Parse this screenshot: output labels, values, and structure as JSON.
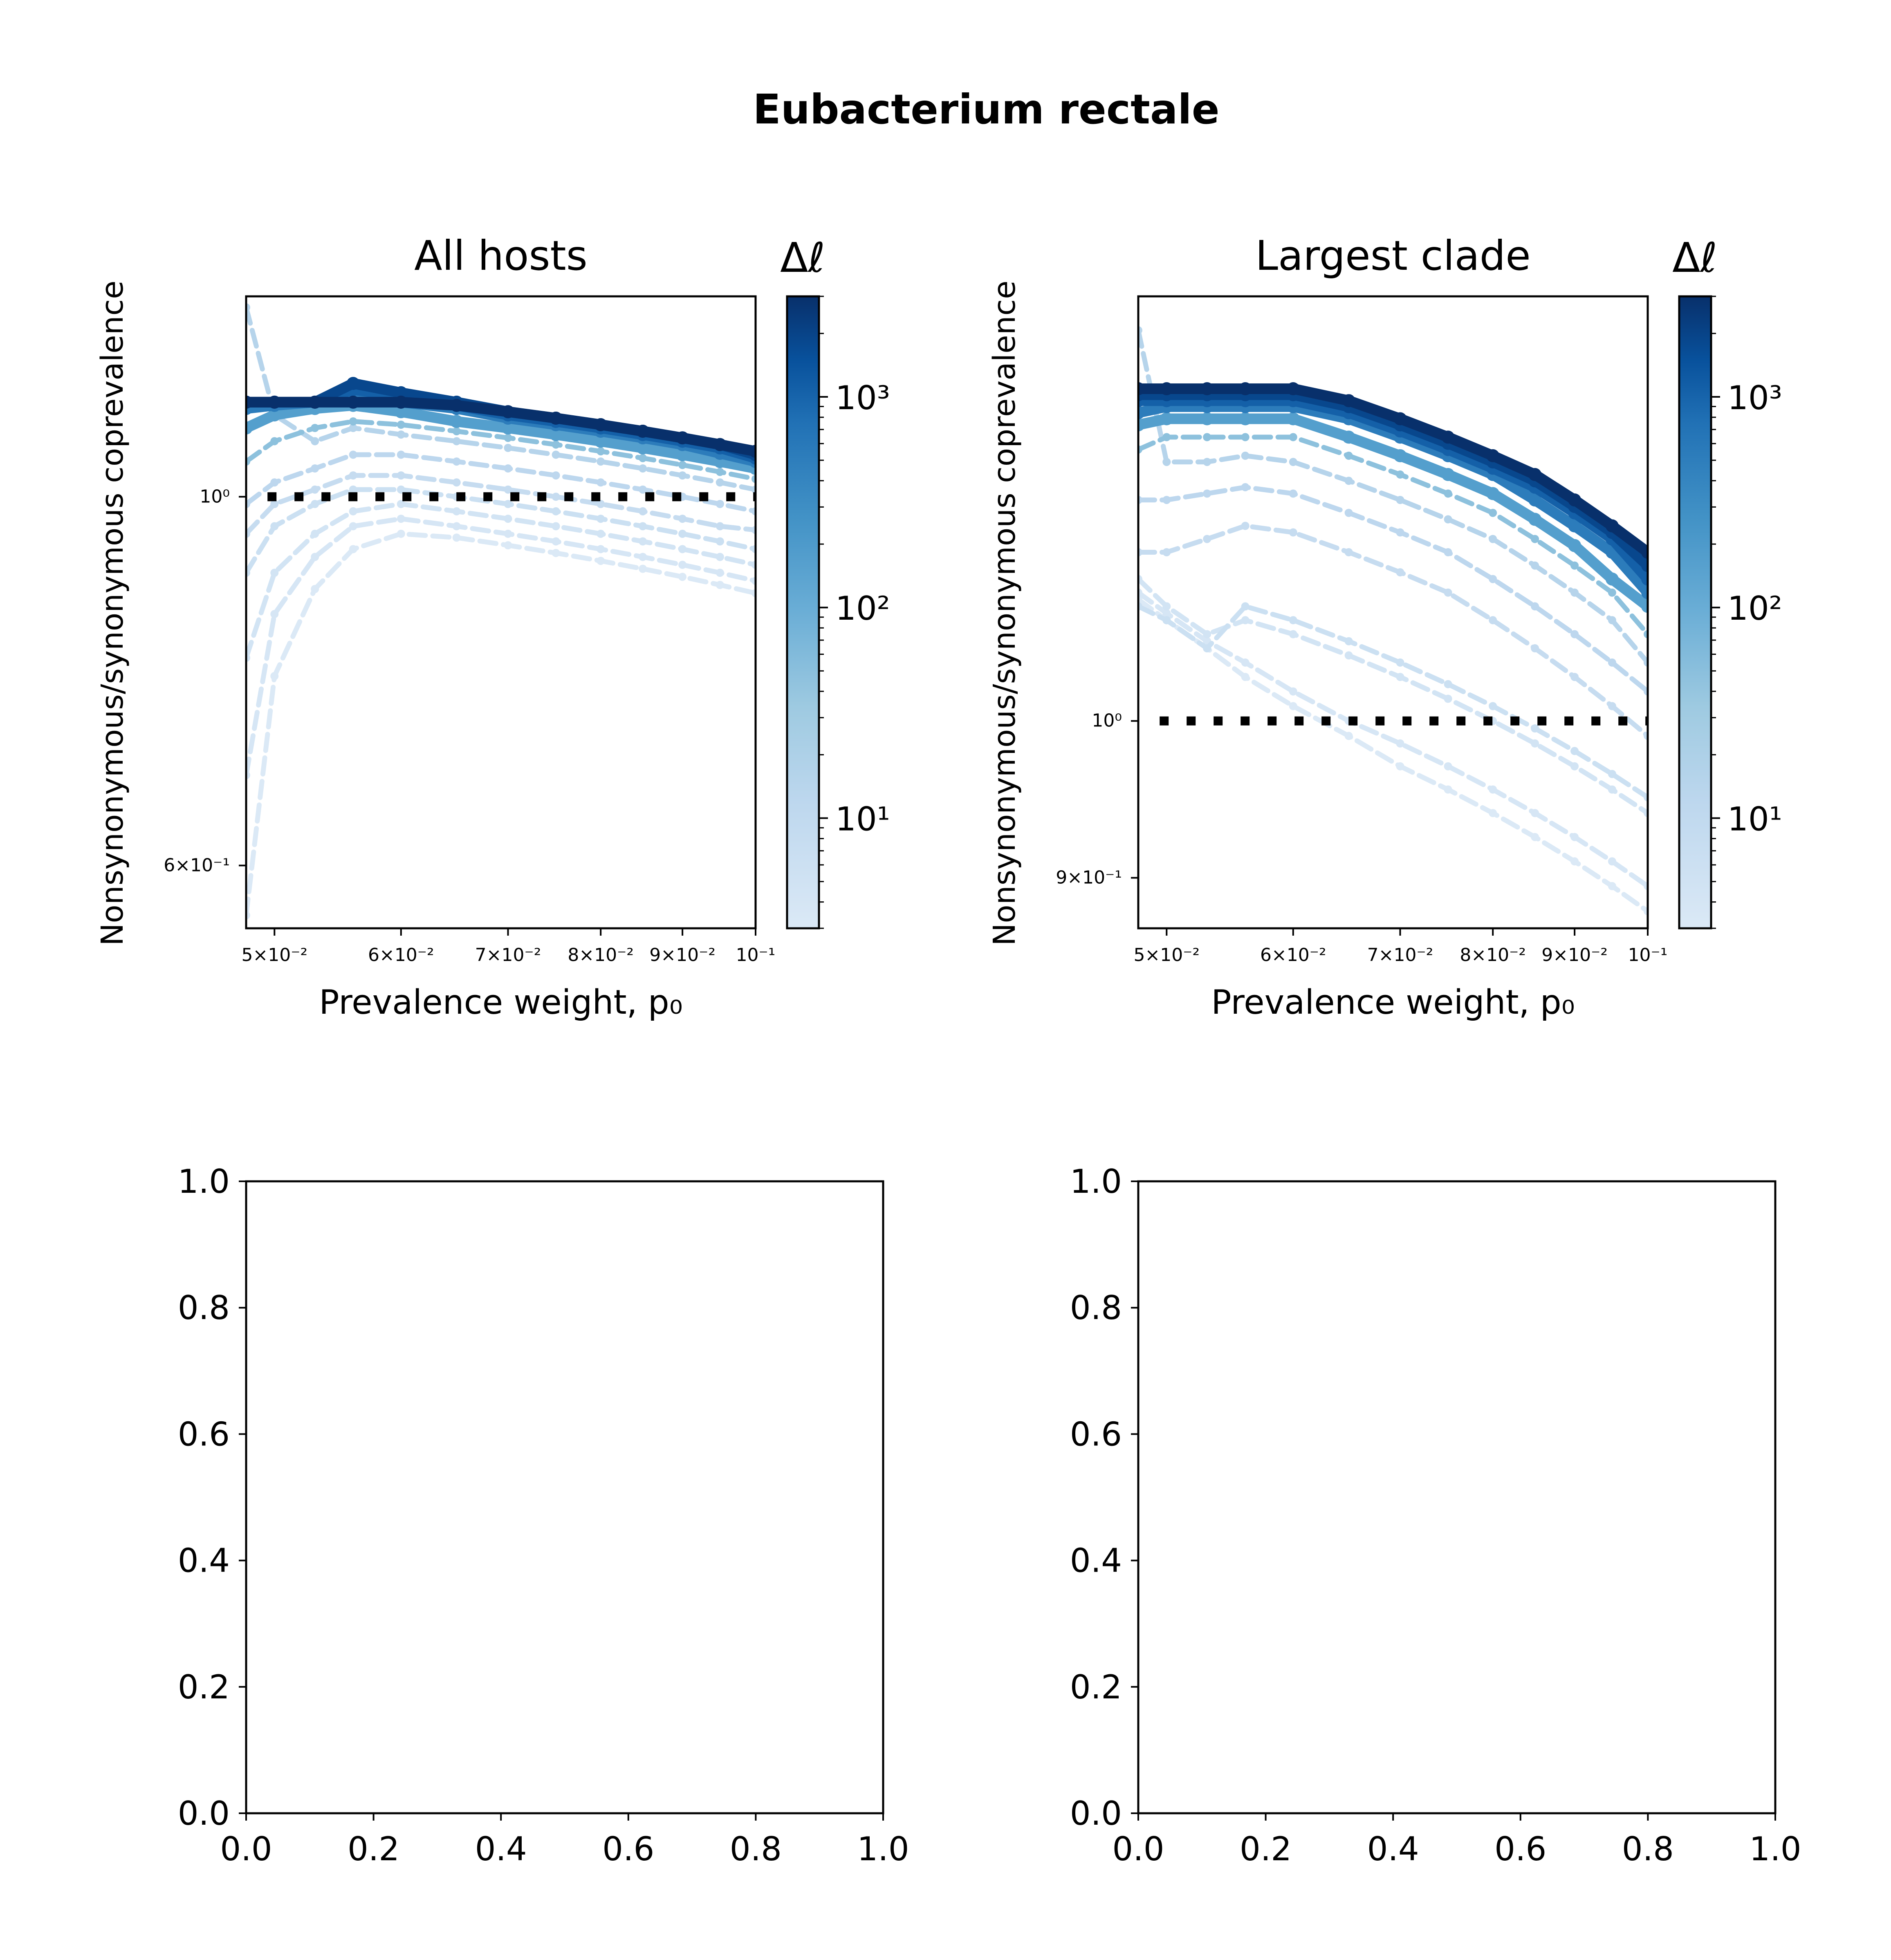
{
  "figure": {
    "title": "Eubacterium rectale"
  },
  "colorbar": {
    "label": "Δℓ",
    "scale": "log",
    "range": [
      3,
      3000
    ],
    "ticks": [
      "10¹",
      "10²",
      "10³"
    ],
    "tick_values": [
      10,
      100,
      1000
    ],
    "colormap": [
      "#dbe9f6",
      "#bdd7ee",
      "#9ecae1",
      "#6baed6",
      "#4292c6",
      "#2171b5",
      "#08519c",
      "#08306b"
    ]
  },
  "reference_line_color": "#000000",
  "chart_data": [
    {
      "id": "all-hosts",
      "type": "line",
      "title": "All hosts",
      "xlabel": "Prevalence weight, p₀",
      "ylabel": "Nonsynonymous/synonymous coprevalence",
      "xscale": "log",
      "yscale": "log",
      "xlim": [
        0.048,
        0.1
      ],
      "ylim": [
        0.55,
        1.32
      ],
      "xticks": [
        {
          "value": 0.05,
          "label": "5×10⁻²"
        },
        {
          "value": 0.06,
          "label": "6×10⁻²"
        },
        {
          "value": 0.07,
          "label": "7×10⁻²"
        },
        {
          "value": 0.08,
          "label": "8×10⁻²"
        },
        {
          "value": 0.09,
          "label": "9×10⁻²"
        },
        {
          "value": 0.1,
          "label": "10⁻¹"
        }
      ],
      "yticks": [
        {
          "value": 1.0,
          "label": "10⁰"
        },
        {
          "value": 0.6,
          "label": "6×10⁻¹"
        }
      ],
      "reference_line": {
        "y": 1.0,
        "style": "dotted"
      },
      "series_x": [
        0.048,
        0.05,
        0.053,
        0.056,
        0.06,
        0.065,
        0.07,
        0.075,
        0.08,
        0.085,
        0.09,
        0.095,
        0.1
      ],
      "series": [
        {
          "delta": 3000,
          "values": [
            1.14,
            1.14,
            1.14,
            1.14,
            1.14,
            1.135,
            1.125,
            1.115,
            1.105,
            1.095,
            1.085,
            1.075,
            1.065
          ]
        },
        {
          "delta": 1500,
          "values": [
            1.14,
            1.14,
            1.14,
            1.17,
            1.155,
            1.14,
            1.125,
            1.115,
            1.105,
            1.095,
            1.085,
            1.075,
            1.06
          ]
        },
        {
          "delta": 700,
          "values": [
            1.14,
            1.14,
            1.14,
            1.16,
            1.15,
            1.135,
            1.12,
            1.11,
            1.1,
            1.09,
            1.08,
            1.07,
            1.055
          ]
        },
        {
          "delta": 300,
          "values": [
            1.13,
            1.135,
            1.14,
            1.15,
            1.14,
            1.13,
            1.115,
            1.105,
            1.095,
            1.085,
            1.075,
            1.062,
            1.05
          ]
        },
        {
          "delta": 100,
          "values": [
            1.1,
            1.12,
            1.13,
            1.135,
            1.125,
            1.11,
            1.1,
            1.09,
            1.08,
            1.07,
            1.06,
            1.05,
            1.04
          ]
        },
        {
          "delta": 30,
          "values": [
            1.05,
            1.08,
            1.1,
            1.11,
            1.105,
            1.095,
            1.085,
            1.075,
            1.065,
            1.055,
            1.045,
            1.035,
            1.025
          ]
        },
        {
          "delta": 10,
          "values": [
            1.3,
            1.12,
            1.08,
            1.1,
            1.09,
            1.08,
            1.07,
            1.06,
            1.05,
            1.04,
            1.03,
            1.02,
            1.01
          ]
        },
        {
          "delta": 8,
          "values": [
            0.99,
            1.02,
            1.04,
            1.06,
            1.06,
            1.05,
            1.04,
            1.03,
            1.02,
            1.01,
            1.0,
            0.99,
            0.98
          ]
        },
        {
          "delta": 6,
          "values": [
            0.95,
            0.99,
            1.01,
            1.03,
            1.03,
            1.02,
            1.01,
            1.0,
            0.99,
            0.98,
            0.97,
            0.96,
            0.955
          ]
        },
        {
          "delta": 5,
          "values": [
            0.9,
            0.96,
            0.99,
            1.01,
            1.01,
            1.0,
            0.99,
            0.98,
            0.97,
            0.96,
            0.95,
            0.94,
            0.93
          ]
        },
        {
          "delta": 4,
          "values": [
            0.8,
            0.9,
            0.95,
            0.98,
            0.99,
            0.98,
            0.97,
            0.96,
            0.95,
            0.94,
            0.93,
            0.92,
            0.91
          ]
        },
        {
          "delta": 3.5,
          "values": [
            0.68,
            0.85,
            0.92,
            0.96,
            0.97,
            0.96,
            0.95,
            0.94,
            0.93,
            0.92,
            0.91,
            0.9,
            0.89
          ]
        },
        {
          "delta": 3,
          "values": [
            0.56,
            0.78,
            0.88,
            0.93,
            0.95,
            0.945,
            0.935,
            0.925,
            0.915,
            0.905,
            0.895,
            0.885,
            0.875
          ]
        }
      ]
    },
    {
      "id": "largest-clade",
      "type": "line",
      "title": "Largest clade",
      "xlabel": "Prevalence weight, p₀",
      "ylabel": "Nonsynonymous/synonymous coprevalence",
      "xscale": "log",
      "yscale": "log",
      "xlim": [
        0.048,
        0.1
      ],
      "ylim": [
        0.87,
        1.33
      ],
      "xticks": [
        {
          "value": 0.05,
          "label": "5×10⁻²"
        },
        {
          "value": 0.06,
          "label": "6×10⁻²"
        },
        {
          "value": 0.07,
          "label": "7×10⁻²"
        },
        {
          "value": 0.08,
          "label": "8×10⁻²"
        },
        {
          "value": 0.09,
          "label": "9×10⁻²"
        },
        {
          "value": 0.1,
          "label": "10⁻¹"
        }
      ],
      "yticks": [
        {
          "value": 1.0,
          "label": "10⁰"
        },
        {
          "value": 0.9,
          "label": "9×10⁻¹"
        }
      ],
      "reference_line": {
        "y": 1.0,
        "style": "dotted"
      },
      "series_x": [
        0.048,
        0.05,
        0.053,
        0.056,
        0.06,
        0.065,
        0.07,
        0.075,
        0.08,
        0.085,
        0.09,
        0.095,
        0.1
      ],
      "series": [
        {
          "delta": 3000,
          "values": [
            1.25,
            1.25,
            1.25,
            1.25,
            1.25,
            1.24,
            1.225,
            1.21,
            1.195,
            1.18,
            1.16,
            1.14,
            1.12
          ]
        },
        {
          "delta": 1500,
          "values": [
            1.245,
            1.245,
            1.245,
            1.245,
            1.245,
            1.235,
            1.22,
            1.205,
            1.19,
            1.175,
            1.155,
            1.135,
            1.11
          ]
        },
        {
          "delta": 700,
          "values": [
            1.24,
            1.24,
            1.24,
            1.24,
            1.24,
            1.23,
            1.215,
            1.2,
            1.185,
            1.17,
            1.15,
            1.13,
            1.1
          ]
        },
        {
          "delta": 300,
          "values": [
            1.23,
            1.235,
            1.235,
            1.235,
            1.235,
            1.225,
            1.21,
            1.195,
            1.18,
            1.16,
            1.14,
            1.12,
            1.09
          ]
        },
        {
          "delta": 100,
          "values": [
            1.22,
            1.225,
            1.225,
            1.225,
            1.225,
            1.21,
            1.195,
            1.18,
            1.165,
            1.145,
            1.125,
            1.1,
            1.08
          ]
        },
        {
          "delta": 30,
          "values": [
            1.2,
            1.21,
            1.21,
            1.21,
            1.21,
            1.195,
            1.18,
            1.165,
            1.15,
            1.13,
            1.11,
            1.09,
            1.06
          ]
        },
        {
          "delta": 10,
          "values": [
            1.3,
            1.19,
            1.19,
            1.195,
            1.19,
            1.175,
            1.16,
            1.145,
            1.13,
            1.11,
            1.09,
            1.07,
            1.04
          ]
        },
        {
          "delta": 8,
          "values": [
            1.16,
            1.16,
            1.165,
            1.17,
            1.165,
            1.15,
            1.135,
            1.12,
            1.1,
            1.08,
            1.06,
            1.04,
            1.02
          ]
        },
        {
          "delta": 6,
          "values": [
            1.12,
            1.12,
            1.13,
            1.14,
            1.135,
            1.12,
            1.105,
            1.09,
            1.07,
            1.05,
            1.03,
            1.01,
            0.99
          ]
        },
        {
          "delta": 5,
          "values": [
            1.08,
            1.07,
            1.05,
            1.08,
            1.07,
            1.055,
            1.04,
            1.025,
            1.01,
            0.995,
            0.98,
            0.965,
            0.95
          ]
        },
        {
          "delta": 4,
          "values": [
            1.1,
            1.08,
            1.06,
            1.07,
            1.06,
            1.045,
            1.03,
            1.015,
            1.0,
            0.985,
            0.97,
            0.955,
            0.94
          ]
        },
        {
          "delta": 3.5,
          "values": [
            1.09,
            1.075,
            1.055,
            1.04,
            1.02,
            1.0,
            0.985,
            0.97,
            0.955,
            0.94,
            0.925,
            0.91,
            0.895
          ]
        },
        {
          "delta": 3,
          "values": [
            1.085,
            1.07,
            1.05,
            1.03,
            1.01,
            0.99,
            0.97,
            0.955,
            0.94,
            0.925,
            0.91,
            0.895,
            0.88
          ]
        }
      ]
    },
    {
      "id": "empty-bottom-left",
      "type": "line",
      "xlim": [
        0,
        1
      ],
      "ylim": [
        0,
        1
      ],
      "xticks": [
        "0.0",
        "0.2",
        "0.4",
        "0.6",
        "0.8",
        "1.0"
      ],
      "yticks": [
        "0.0",
        "0.2",
        "0.4",
        "0.6",
        "0.8",
        "1.0"
      ],
      "series": []
    },
    {
      "id": "empty-bottom-right",
      "type": "line",
      "xlim": [
        0,
        1
      ],
      "ylim": [
        0,
        1
      ],
      "xticks": [
        "0.0",
        "0.2",
        "0.4",
        "0.6",
        "0.8",
        "1.0"
      ],
      "yticks": [
        "0.0",
        "0.2",
        "0.4",
        "0.6",
        "0.8",
        "1.0"
      ],
      "series": []
    }
  ]
}
